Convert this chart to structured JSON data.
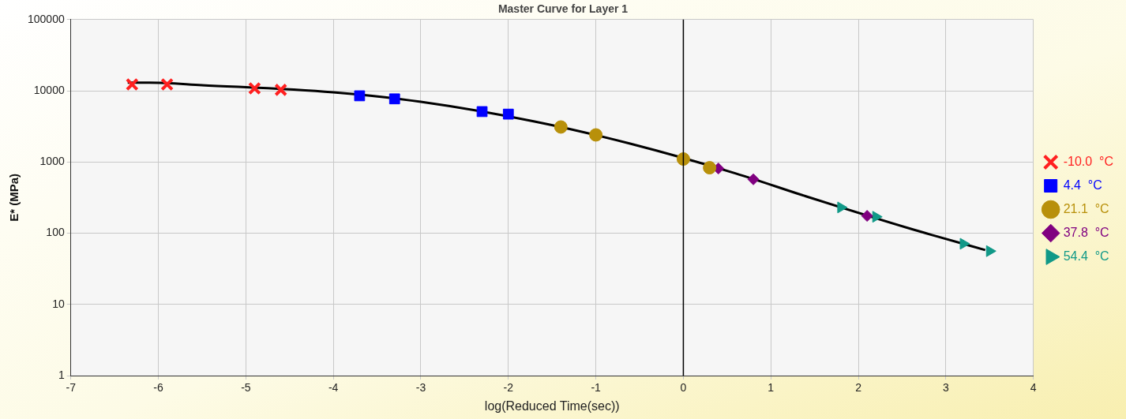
{
  "chart_data": {
    "type": "scatter",
    "title": "Master Curve for Layer 1",
    "xlabel": "log(Reduced Time(sec))",
    "ylabel": "E* (MPa)",
    "xlim": [
      -7,
      4
    ],
    "xticks": [
      -7,
      -6,
      -5,
      -4,
      -3,
      -2,
      -1,
      0,
      1,
      2,
      3,
      4
    ],
    "ylim": [
      1,
      100000
    ],
    "yticks": [
      1,
      10,
      100,
      1000,
      10000,
      100000
    ],
    "log": true,
    "grid": true,
    "legend": "right",
    "ref_lines": [
      {
        "axis": "x",
        "value": 0,
        "color": "#000000"
      }
    ],
    "series": [
      {
        "type": "line",
        "color": "#000000",
        "marker": "none",
        "x": [
          -6.35,
          -6.1,
          -5.5,
          -4,
          -3,
          -1.7,
          -0.6,
          0.6,
          1.4,
          2.6,
          2.9,
          3.45
        ],
        "values": [
          13000,
          13000,
          12000,
          9500,
          7000,
          3700,
          1800,
          690,
          330,
          115,
          90,
          58
        ]
      },
      {
        "name": "-10.0  °C",
        "color": "#ff2020",
        "marker": "cross",
        "x": [
          -6.3,
          -5.9,
          -4.9,
          -4.6
        ],
        "values": [
          12300,
          12300,
          10800,
          10300
        ]
      },
      {
        "name": "4.4  °C",
        "color": "#0000ff",
        "marker": "square",
        "x": [
          -3.7,
          -3.3,
          -2.3,
          -2.0
        ],
        "values": [
          8500,
          7700,
          5100,
          4700
        ]
      },
      {
        "name": "21.1  °C",
        "color": "#b8900a",
        "marker": "circle",
        "x": [
          -1.4,
          -1.0,
          0,
          0.3
        ],
        "values": [
          3100,
          2400,
          1100,
          830
        ]
      },
      {
        "name": "37.8  °C",
        "color": "#800080",
        "marker": "diamond",
        "x": [
          0.4,
          0.8,
          2.1
        ],
        "values": [
          810,
          570,
          175
        ]
      },
      {
        "name": "54.4  °C",
        "color": "#119988",
        "marker": "triangle",
        "x": [
          1.8,
          2.2,
          3.2,
          3.5
        ],
        "values": [
          230,
          170,
          71,
          56
        ]
      }
    ]
  }
}
